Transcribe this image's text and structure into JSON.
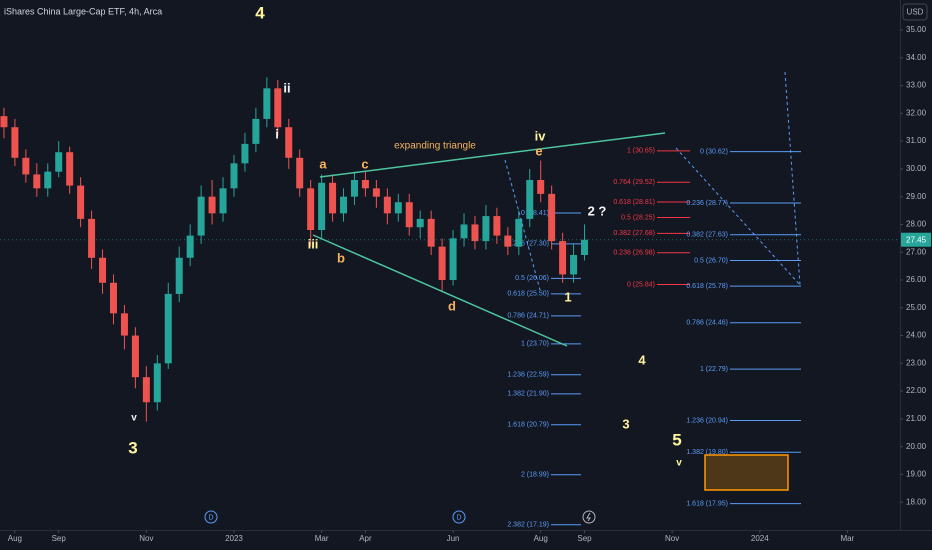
{
  "chart_data": {
    "type": "candlestick",
    "title": "iShares China Large-Cap ETF, 4h, Arca",
    "currency": "USD",
    "up_color": "#26a69a",
    "down_color": "#ef5350",
    "xlim": [
      -0.34,
      20.2
    ],
    "xticks": [
      {
        "value": 0,
        "label": "Aug"
      },
      {
        "value": 1,
        "label": "Sep"
      },
      {
        "value": 3,
        "label": "Nov"
      },
      {
        "value": 5,
        "label": "2023"
      },
      {
        "value": 7,
        "label": "Mar"
      },
      {
        "value": 8,
        "label": "Apr"
      },
      {
        "value": 10,
        "label": "Jun"
      },
      {
        "value": 12,
        "label": "Aug"
      },
      {
        "value": 13,
        "label": "Sep"
      },
      {
        "value": 15,
        "label": "Nov"
      },
      {
        "value": 17,
        "label": "2024"
      },
      {
        "value": 19,
        "label": "Mar"
      }
    ],
    "ylim": [
      17,
      35.9
    ],
    "yticks": [
      {
        "value": 35,
        "label": "35.00"
      },
      {
        "value": 34,
        "label": "34.00"
      },
      {
        "value": 33,
        "label": "33.00"
      },
      {
        "value": 32,
        "label": "32.00"
      },
      {
        "value": 31,
        "label": "31.00"
      },
      {
        "value": 30,
        "label": "30.00"
      },
      {
        "value": 29,
        "label": "29.00"
      },
      {
        "value": 28,
        "label": "28.00"
      },
      {
        "value": 27,
        "label": "27.00"
      },
      {
        "value": 26,
        "label": "26.00"
      },
      {
        "value": 25,
        "label": "25.00"
      },
      {
        "value": 24,
        "label": "24.00"
      },
      {
        "value": 23,
        "label": "23.00"
      },
      {
        "value": 22,
        "label": "22.00"
      },
      {
        "value": 21,
        "label": "21.00"
      },
      {
        "value": 20,
        "label": "20.00"
      },
      {
        "value": 19,
        "label": "19.00"
      },
      {
        "value": 18,
        "label": "18.00"
      }
    ],
    "x": [
      -0.25,
      0,
      0.25,
      0.5,
      0.75,
      1,
      1.25,
      1.5,
      1.75,
      2,
      2.25,
      2.5,
      2.75,
      3,
      3.25,
      3.5,
      3.75,
      4,
      4.25,
      4.5,
      4.75,
      5,
      5.25,
      5.5,
      5.75,
      6,
      6.25,
      6.5,
      6.75,
      7,
      7.25,
      7.5,
      7.75,
      8,
      8.25,
      8.5,
      8.75,
      9,
      9.25,
      9.5,
      9.75,
      10,
      10.25,
      10.5,
      10.75,
      11,
      11.25,
      11.5,
      11.75,
      12,
      12.25,
      12.5,
      12.75,
      13
    ],
    "open": [
      31.9,
      31.5,
      30.4,
      29.8,
      29.3,
      29.9,
      30.6,
      29.4,
      28.2,
      26.8,
      25.9,
      24.8,
      24.0,
      22.5,
      21.6,
      23.0,
      25.5,
      26.8,
      27.6,
      29.0,
      28.4,
      29.3,
      30.2,
      30.9,
      31.8,
      32.9,
      31.5,
      30.4,
      29.3,
      27.8,
      29.5,
      28.4,
      29.0,
      29.6,
      29.3,
      29.0,
      28.4,
      28.8,
      27.9,
      28.2,
      27.2,
      26.0,
      27.5,
      28.0,
      27.4,
      28.3,
      27.6,
      27.2,
      28.2,
      29.6,
      29.1,
      27.4,
      26.2,
      26.9
    ],
    "high": [
      32.2,
      31.8,
      30.7,
      30.2,
      30.2,
      31.0,
      30.8,
      29.7,
      28.5,
      27.1,
      26.2,
      25.1,
      24.3,
      22.9,
      23.3,
      25.9,
      27.2,
      28.0,
      29.4,
      29.6,
      29.7,
      30.5,
      31.3,
      32.2,
      33.3,
      33.2,
      31.8,
      30.7,
      29.6,
      29.8,
      29.8,
      29.3,
      29.9,
      29.9,
      29.6,
      29.3,
      29.1,
      29.1,
      28.5,
      28.5,
      27.5,
      27.8,
      28.4,
      28.3,
      28.7,
      28.6,
      27.9,
      28.5,
      30.0,
      30.3,
      29.4,
      27.7,
      27.3,
      28.0
    ],
    "low": [
      31.1,
      30.1,
      29.5,
      29.0,
      29.0,
      29.7,
      29.1,
      27.9,
      26.4,
      25.5,
      24.4,
      23.5,
      22.1,
      20.9,
      21.3,
      22.8,
      25.2,
      26.5,
      27.3,
      28.0,
      28.1,
      29.0,
      29.9,
      30.6,
      31.5,
      31.2,
      30.0,
      29.0,
      27.2,
      27.5,
      28.1,
      28.1,
      28.7,
      29.0,
      28.6,
      28.0,
      28.1,
      27.6,
      27.5,
      26.9,
      25.6,
      25.8,
      27.2,
      27.1,
      27.1,
      27.3,
      26.9,
      26.9,
      27.9,
      28.8,
      27.1,
      25.9,
      25.9,
      26.7
    ],
    "close": [
      31.5,
      30.4,
      29.8,
      29.3,
      29.9,
      30.6,
      29.4,
      28.2,
      26.8,
      25.9,
      24.8,
      24.0,
      22.5,
      21.6,
      23.0,
      25.5,
      26.8,
      27.6,
      29.0,
      28.4,
      29.3,
      30.2,
      30.9,
      31.8,
      32.9,
      31.5,
      30.4,
      29.3,
      27.8,
      29.5,
      28.4,
      29.0,
      29.6,
      29.3,
      29.0,
      28.4,
      28.8,
      27.9,
      28.2,
      27.2,
      26.0,
      27.5,
      28.0,
      27.4,
      28.3,
      27.6,
      27.2,
      28.2,
      29.6,
      29.1,
      27.4,
      26.2,
      26.9,
      27.45
    ],
    "fib_sets": [
      {
        "color": "#5b9cf6",
        "levels": [
          {
            "value": 28.41,
            "label": "0 (28.41)"
          },
          {
            "value": 27.3,
            "label": "0.236 (27.30)"
          },
          {
            "value": 26.06,
            "label": "0.5 (26.06)"
          },
          {
            "value": 25.5,
            "label": "0.618 (25.50)"
          },
          {
            "value": 24.71,
            "label": "0.786 (24.71)"
          },
          {
            "value": 23.7,
            "label": "1 (23.70)"
          },
          {
            "value": 22.59,
            "label": "1.236 (22.59)"
          },
          {
            "value": 21.9,
            "label": "1.382 (21.90)"
          },
          {
            "value": 20.79,
            "label": "1.618 (20.79)"
          },
          {
            "value": 18.99,
            "label": "2 (18.99)"
          },
          {
            "value": 17.19,
            "label": "2.382 (17.19)"
          }
        ]
      },
      {
        "color": "#f23645",
        "levels": [
          {
            "value": 30.65,
            "label": "1 (30.65)"
          },
          {
            "value": 29.52,
            "label": "0.764 (29.52)"
          },
          {
            "value": 28.81,
            "label": "0.618 (28.81)"
          },
          {
            "value": 28.25,
            "label": "0.5 (28.25)"
          },
          {
            "value": 27.68,
            "label": "0.382 (27.68)"
          },
          {
            "value": 26.98,
            "label": "0.236 (26.98)"
          },
          {
            "value": 25.84,
            "label": "0 (25.84)"
          }
        ]
      },
      {
        "color": "#5b9cf6",
        "levels": [
          {
            "value": 30.62,
            "label": "0 (30.62)"
          },
          {
            "value": 28.77,
            "label": "0.236 (28.77)"
          },
          {
            "value": 27.63,
            "label": "0.382 (27.63)"
          },
          {
            "value": 26.7,
            "label": "0.5 (26.70)"
          },
          {
            "value": 25.78,
            "label": "0.618 (25.78)"
          },
          {
            "value": 24.46,
            "label": "0.786 (24.46)"
          },
          {
            "value": 22.79,
            "label": "1 (22.79)"
          },
          {
            "value": 20.94,
            "label": "1.236 (20.94)"
          },
          {
            "value": 19.8,
            "label": "1.382 (19.80)"
          },
          {
            "value": 17.95,
            "label": "1.618 (17.95)"
          }
        ]
      }
    ],
    "wave_labels": [
      "4",
      "ii",
      "i",
      "iii",
      "3",
      "v",
      "a",
      "b",
      "c",
      "d",
      "e",
      "iv",
      "1",
      "2 ?",
      "4",
      "3",
      "5",
      "v"
    ],
    "pattern_label": "expanding triangle",
    "dividend_markers": [
      "D",
      "D"
    ]
  }
}
